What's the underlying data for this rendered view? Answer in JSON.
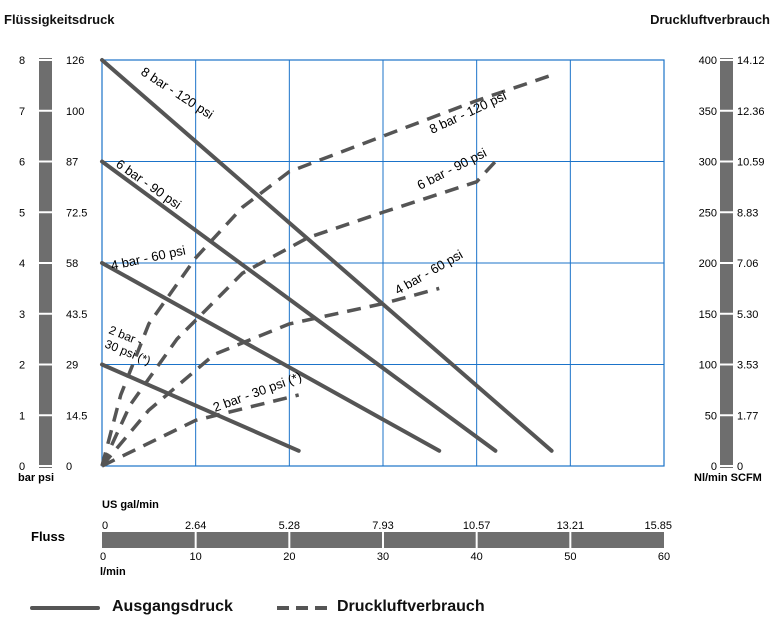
{
  "chart_data": {
    "type": "line",
    "left_axis_title": "Flüssigkeitsdruck",
    "right_axis_title": "Druckluftverbrauch",
    "left_units": "bar psi",
    "right_units": "Nl/min SCFM",
    "bar_ticks": [
      "0",
      "1",
      "2",
      "3",
      "4",
      "5",
      "6",
      "7",
      "8"
    ],
    "psi_ticks": [
      "0",
      "14.5",
      "29",
      "43.5",
      "58",
      "72.5",
      "87",
      "100",
      "126"
    ],
    "nl_ticks": [
      "0",
      "50",
      "100",
      "150",
      "200",
      "250",
      "300",
      "350",
      "400"
    ],
    "scfm_ticks": [
      "0",
      "1.77",
      "3.53",
      "5.30",
      "7.06",
      "8.83",
      "10.59",
      "12.36",
      "14.12"
    ],
    "flow_title": "Fluss",
    "us_unit": "US gal/min",
    "us_ticks": [
      "0",
      "2.64",
      "5.28",
      "7.93",
      "10.57",
      "13.21",
      "15.85"
    ],
    "lmin_unit": "l/min",
    "lmin_ticks": [
      "0",
      "10",
      "20",
      "30",
      "40",
      "50",
      "60"
    ],
    "xlim": [
      0,
      60
    ],
    "ylim_bar": [
      0,
      8
    ],
    "ylim_nl": [
      0,
      400
    ],
    "grid": true,
    "pressure_series": [
      {
        "name": "8 bar - 120 psi",
        "points": [
          [
            0,
            8.0
          ],
          [
            48,
            0.3
          ]
        ]
      },
      {
        "name": "6 bar - 90 psi",
        "points": [
          [
            0,
            6.0
          ],
          [
            42,
            0.3
          ]
        ]
      },
      {
        "name": "4 bar - 60 psi",
        "points": [
          [
            0,
            4.0
          ],
          [
            36,
            0.3
          ]
        ]
      },
      {
        "name": "2 bar - 30 psi (*)",
        "points": [
          [
            0,
            2.0
          ],
          [
            21,
            0.3
          ]
        ]
      }
    ],
    "air_series": [
      {
        "name": "8 bar - 120 psi",
        "points": [
          [
            0,
            0
          ],
          [
            2,
            70
          ],
          [
            5,
            140
          ],
          [
            10,
            205
          ],
          [
            15,
            255
          ],
          [
            20,
            290
          ],
          [
            30,
            325
          ],
          [
            40,
            360
          ],
          [
            48,
            385
          ]
        ]
      },
      {
        "name": "6 bar - 90 psi",
        "points": [
          [
            0,
            0
          ],
          [
            3,
            60
          ],
          [
            8,
            125
          ],
          [
            15,
            190
          ],
          [
            22,
            225
          ],
          [
            30,
            250
          ],
          [
            40,
            280
          ],
          [
            42,
            300
          ]
        ]
      },
      {
        "name": "4 bar - 60 psi",
        "points": [
          [
            0,
            0
          ],
          [
            5,
            55
          ],
          [
            12,
            110
          ],
          [
            20,
            140
          ],
          [
            30,
            160
          ],
          [
            36,
            175
          ]
        ]
      },
      {
        "name": "2 bar - 30 psi (*)",
        "points": [
          [
            0,
            0
          ],
          [
            10,
            45
          ],
          [
            21,
            70
          ]
        ]
      }
    ]
  },
  "legend": {
    "solid_label": "Ausgangsdruck",
    "dashed_label": "Druckluftverbrauch"
  }
}
